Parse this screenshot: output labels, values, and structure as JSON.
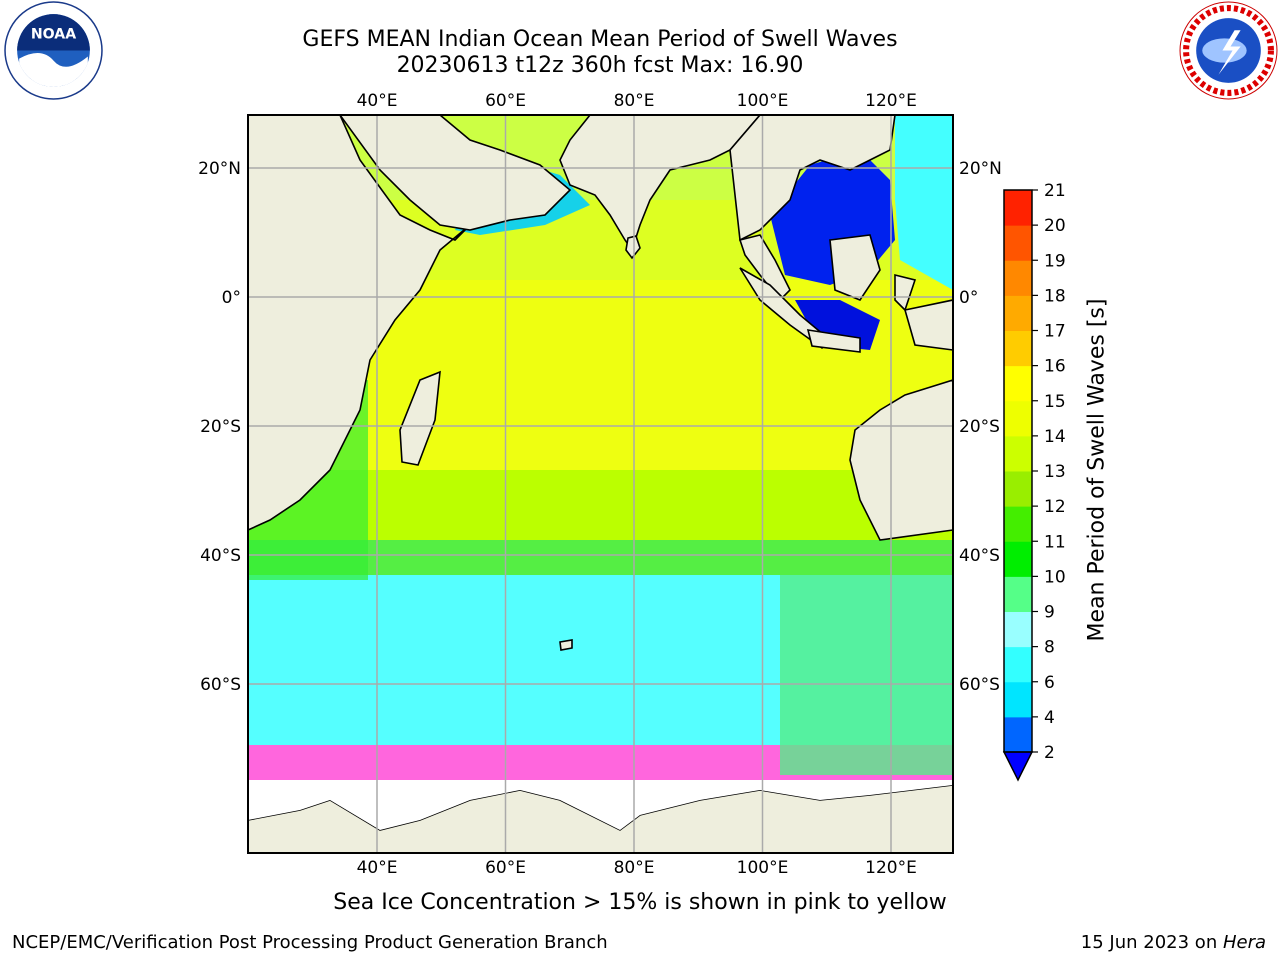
{
  "title": {
    "line1": "GEFS MEAN Indian Ocean Mean Period of Swell Waves",
    "line2": "20230613 t12z 360h fcst   Max: 16.90"
  },
  "map": {
    "lon_ticks": [
      "40°E",
      "60°E",
      "80°E",
      "100°E",
      "120°E"
    ],
    "lat_ticks": [
      "20°N",
      "0°",
      "20°S",
      "40°S",
      "60°S"
    ],
    "lon_range": [
      20,
      130
    ],
    "lat_range": [
      -85,
      28
    ],
    "ocean_color": "#33ff00",
    "land_color": "#eeeedd"
  },
  "colorbar": {
    "label": "Mean Period of Swell Waves [s]",
    "ticks": [
      "2",
      "4",
      "6",
      "8",
      "9",
      "10",
      "11",
      "12",
      "13",
      "14",
      "15",
      "16",
      "17",
      "18",
      "19",
      "20",
      "21"
    ],
    "colors": [
      "#0066ff",
      "#00e5ff",
      "#33ffff",
      "#99ffff",
      "#55ff88",
      "#00ee00",
      "#44ee00",
      "#99ee00",
      "#ccff00",
      "#eeff00",
      "#ffff00",
      "#ffcc00",
      "#ffaa00",
      "#ff8800",
      "#ff5500",
      "#ff2200"
    ],
    "extend_color": "#0000ff"
  },
  "footnote": "Sea Ice Concentration > 15% is shown in pink to yellow",
  "footer": {
    "left": "NCEP/EMC/Verification Post Processing Product Generation Branch",
    "right_date": "15 Jun 2023 on ",
    "right_host": "Hera"
  },
  "logos": {
    "noaa": "NOAA",
    "nws": "NATIONAL WEATHER SERVICE"
  }
}
